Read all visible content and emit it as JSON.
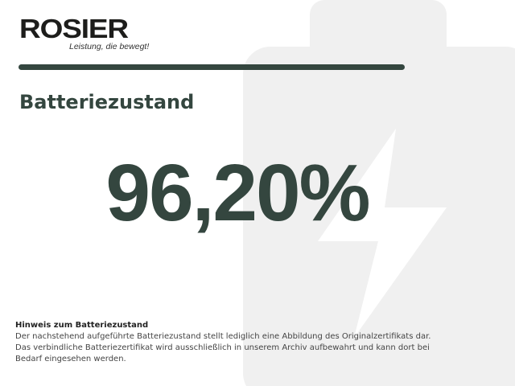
{
  "logo": {
    "name": "ROSIER",
    "tagline": "Leistung, die bewegt!"
  },
  "title": "Batteriezustand",
  "value": "96,20%",
  "note": {
    "heading": "Hinweis zum Batteriezustand",
    "lines": [
      "Der nachstehend aufgeführte Batteriezustand stellt lediglich eine Abbildung des Originalzertifikats dar.",
      "Das verbindliche Batteriezertifikat wird ausschließlich in unserem Archiv aufbewahrt und kann dort bei",
      "Bedarf eingesehen werden."
    ]
  },
  "colors": {
    "accent": "#34463f",
    "background_icon": "#f0f0f0"
  },
  "background_icon": "battery-bolt-icon"
}
